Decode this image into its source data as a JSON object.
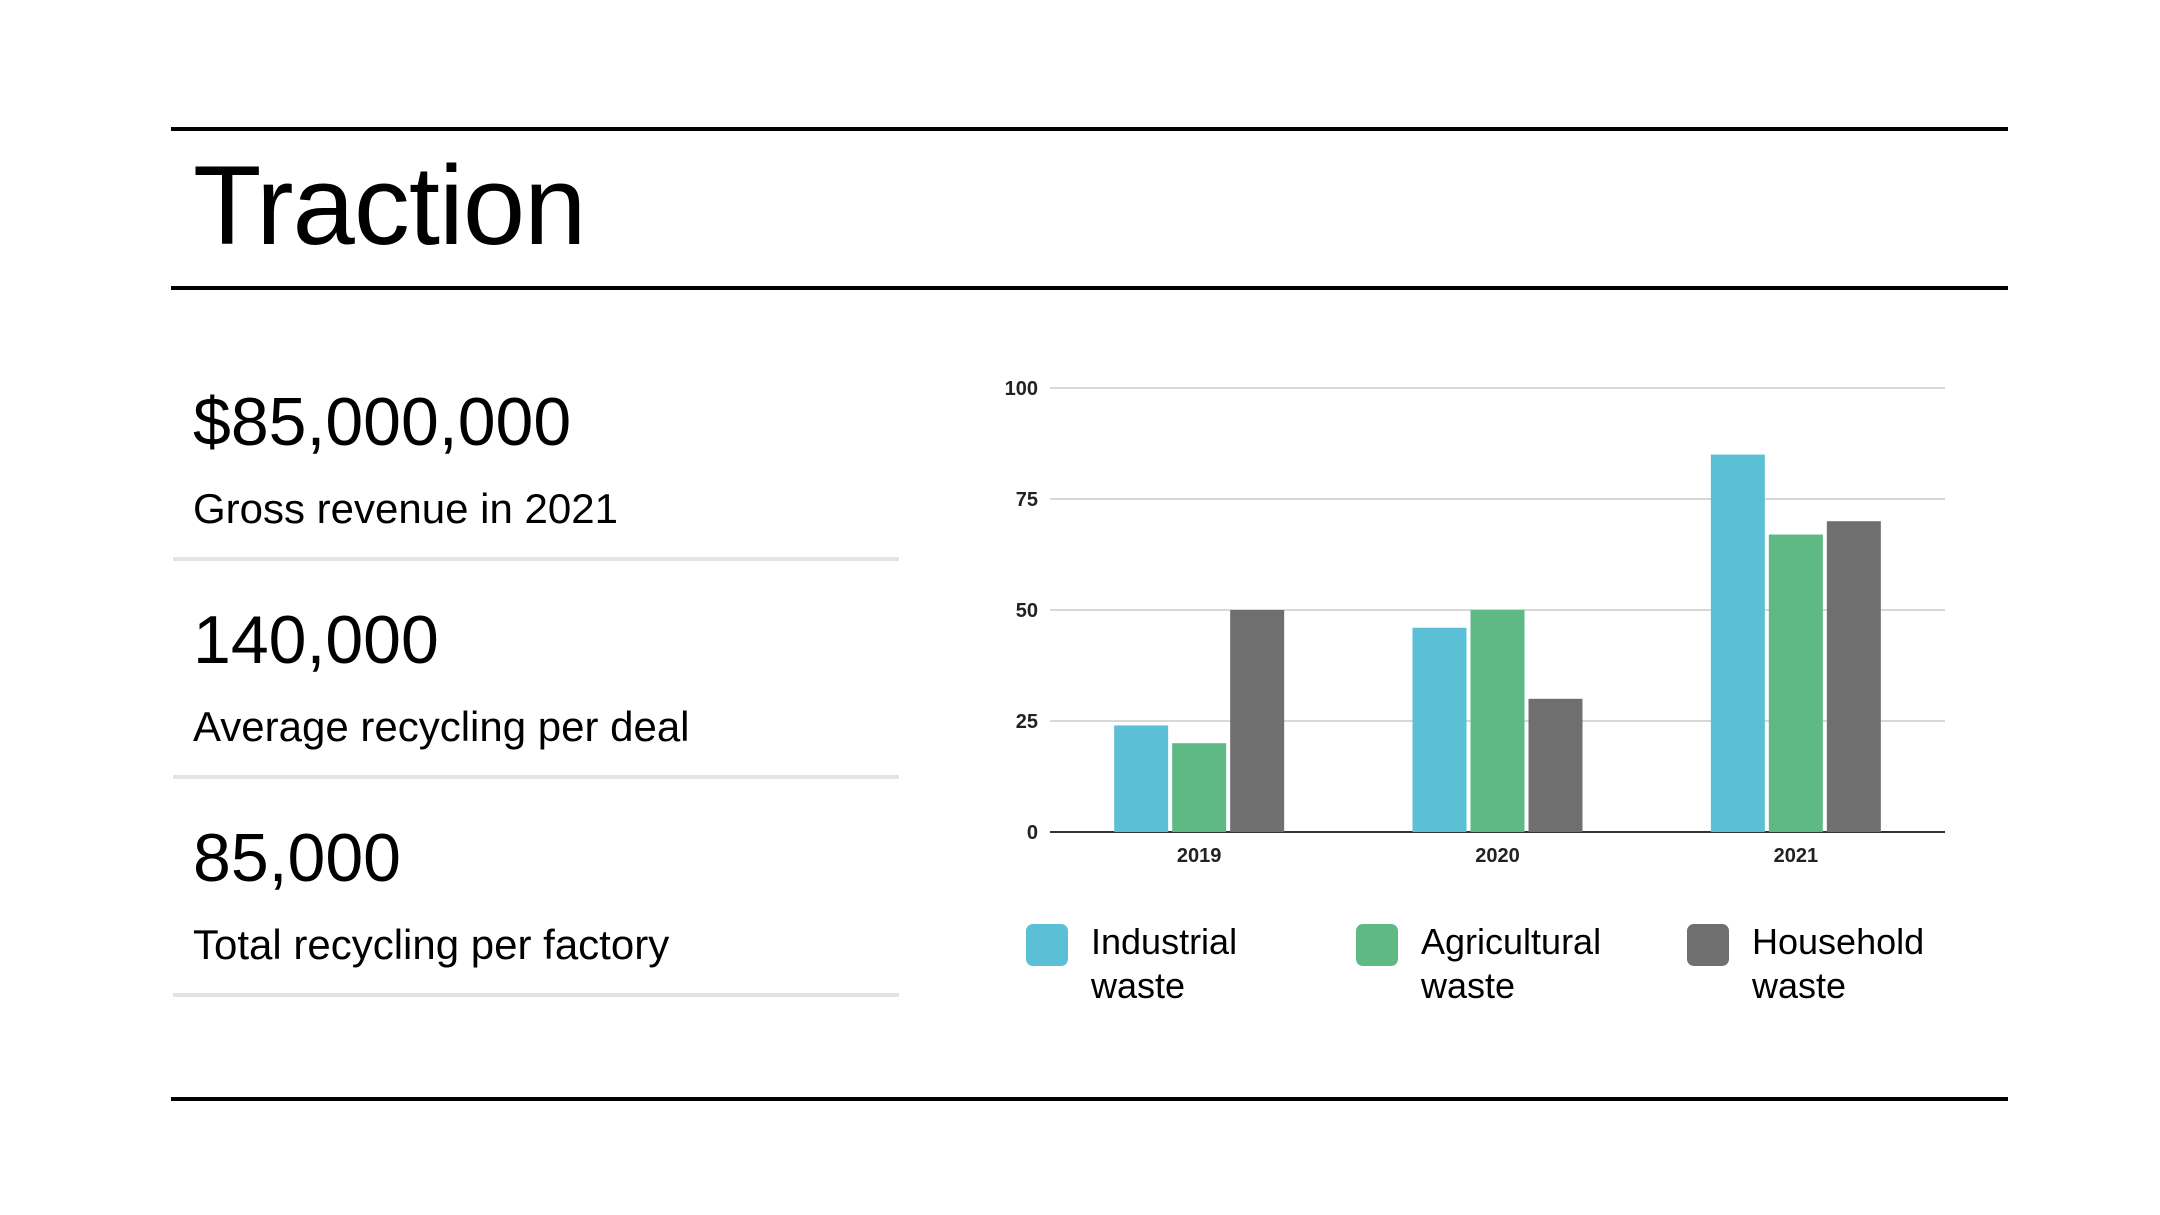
{
  "slide": {
    "title": "Traction"
  },
  "stats": [
    {
      "value": "$85,000,000",
      "label": "Gross revenue in 2021"
    },
    {
      "value": "140,000",
      "label": "Average recycling per deal"
    },
    {
      "value": "85,000",
      "label": "Total recycling per factory"
    }
  ],
  "chart_data": {
    "type": "bar",
    "categories": [
      "2019",
      "2020",
      "2021"
    ],
    "series": [
      {
        "name": "Industrial waste",
        "name_lines": [
          "Industrial",
          "waste"
        ],
        "values": [
          24,
          46,
          85
        ],
        "color": "#5bc0d6"
      },
      {
        "name": "Agricultural waste",
        "name_lines": [
          "Agricultural",
          "waste"
        ],
        "values": [
          20,
          50,
          67
        ],
        "color": "#5fb985"
      },
      {
        "name": "Household waste",
        "name_lines": [
          "Household",
          "waste"
        ],
        "values": [
          50,
          30,
          70
        ],
        "color": "#6f6f6f"
      }
    ],
    "ylim": [
      0,
      100
    ],
    "yticks": [
      "0",
      "25",
      "50",
      "75",
      "100"
    ],
    "grid": true,
    "legend": "bottom",
    "title": "",
    "xlabel": "",
    "ylabel": ""
  }
}
